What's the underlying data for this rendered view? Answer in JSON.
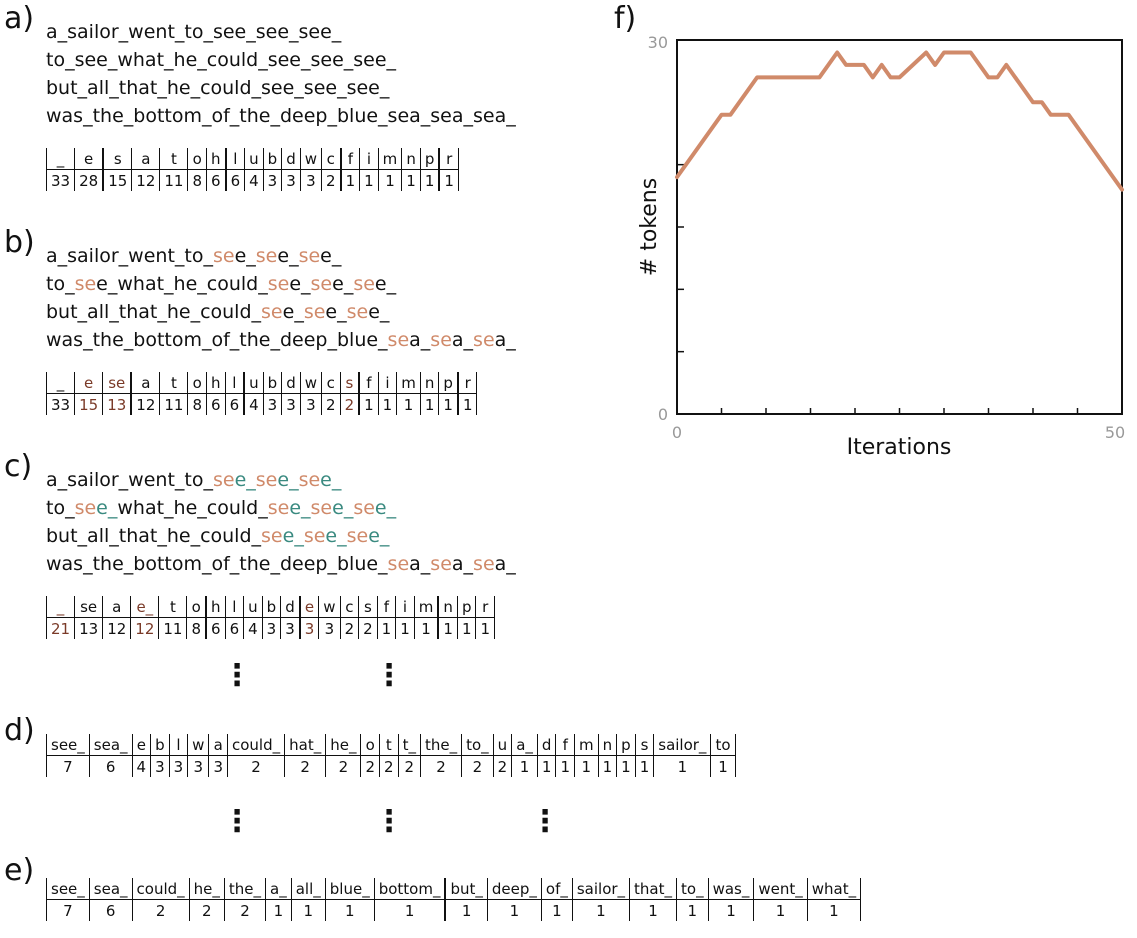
{
  "labels": {
    "a": "a)",
    "b": "b)",
    "c": "c)",
    "d": "d)",
    "e": "e)",
    "f": "f)"
  },
  "panel_a": {
    "sentences": [
      [
        {
          "t": "a_sailor_went_to_see_see_see_"
        }
      ],
      [
        {
          "t": "to_see_what_he_could_see_see_see_"
        }
      ],
      [
        {
          "t": "but_all_that_he_could_see_see_see_"
        }
      ],
      [
        {
          "t": "was_the_bottom_of_the_deep_blue_sea_sea_sea_"
        }
      ]
    ],
    "table": {
      "tokens": [
        "_",
        "e",
        "s",
        "a",
        "t",
        "o",
        "h",
        "l",
        "u",
        "b",
        "d",
        "w",
        "c",
        "f",
        "i",
        "m",
        "n",
        "p",
        "r"
      ],
      "counts": [
        "33",
        "28",
        "15",
        "12",
        "11",
        "8",
        "6",
        "6",
        "4",
        "3",
        "3",
        "3",
        "2",
        "1",
        "1",
        "1",
        "1",
        "1",
        "1"
      ],
      "highlight": {}
    }
  },
  "panel_b": {
    "sentences": [
      [
        {
          "t": "a_sailor_went_to_"
        },
        {
          "t": "se",
          "c": "c1"
        },
        {
          "t": "e_"
        },
        {
          "t": "se",
          "c": "c1"
        },
        {
          "t": "e_"
        },
        {
          "t": "se",
          "c": "c1"
        },
        {
          "t": "e_"
        }
      ],
      [
        {
          "t": "to_"
        },
        {
          "t": "se",
          "c": "c1"
        },
        {
          "t": "e_what_he_could_"
        },
        {
          "t": "se",
          "c": "c1"
        },
        {
          "t": "e_"
        },
        {
          "t": "se",
          "c": "c1"
        },
        {
          "t": "e_"
        },
        {
          "t": "se",
          "c": "c1"
        },
        {
          "t": "e_"
        }
      ],
      [
        {
          "t": "but_all_that_he_could_"
        },
        {
          "t": "se",
          "c": "c1"
        },
        {
          "t": "e_"
        },
        {
          "t": "se",
          "c": "c1"
        },
        {
          "t": "e_"
        },
        {
          "t": "se",
          "c": "c1"
        },
        {
          "t": "e_"
        }
      ],
      [
        {
          "t": "was_the_bottom_of_the_deep_blue_"
        },
        {
          "t": "se",
          "c": "c1"
        },
        {
          "t": "a_"
        },
        {
          "t": "se",
          "c": "c1"
        },
        {
          "t": "a_"
        },
        {
          "t": "se",
          "c": "c1"
        },
        {
          "t": "a_"
        }
      ]
    ],
    "table": {
      "tokens": [
        "_",
        "e",
        "se",
        "a",
        "t",
        "o",
        "h",
        "l",
        "u",
        "b",
        "d",
        "w",
        "c",
        "s",
        "f",
        "i",
        "m",
        "n",
        "p",
        "r"
      ],
      "counts": [
        "33",
        "15",
        "13",
        "12",
        "11",
        "8",
        "6",
        "6",
        "4",
        "3",
        "3",
        "3",
        "2",
        "2",
        "1",
        "1",
        "1",
        "1",
        "1",
        "1"
      ],
      "highlight": {
        "1": "c3",
        "2": "c3",
        "13": "c3"
      }
    }
  },
  "panel_c": {
    "sentences": [
      [
        {
          "t": "a_sailor_went_to_"
        },
        {
          "t": "se",
          "c": "c1"
        },
        {
          "t": "e_",
          "c": "c2"
        },
        {
          "t": "se",
          "c": "c1"
        },
        {
          "t": "e_",
          "c": "c2"
        },
        {
          "t": "se",
          "c": "c1"
        },
        {
          "t": "e_",
          "c": "c2"
        }
      ],
      [
        {
          "t": "to_"
        },
        {
          "t": "se",
          "c": "c1"
        },
        {
          "t": "e_",
          "c": "c2"
        },
        {
          "t": "what_he_could_"
        },
        {
          "t": "se",
          "c": "c1"
        },
        {
          "t": "e_",
          "c": "c2"
        },
        {
          "t": "se",
          "c": "c1"
        },
        {
          "t": "e_",
          "c": "c2"
        },
        {
          "t": "se",
          "c": "c1"
        },
        {
          "t": "e_",
          "c": "c2"
        }
      ],
      [
        {
          "t": "but_all_that_he_could_"
        },
        {
          "t": "se",
          "c": "c1"
        },
        {
          "t": "e_",
          "c": "c2"
        },
        {
          "t": "se",
          "c": "c1"
        },
        {
          "t": "e_",
          "c": "c2"
        },
        {
          "t": "se",
          "c": "c1"
        },
        {
          "t": "e_",
          "c": "c2"
        }
      ],
      [
        {
          "t": "was_the_bottom_of_the_deep_blue_"
        },
        {
          "t": "se",
          "c": "c1"
        },
        {
          "t": "a_"
        },
        {
          "t": "se",
          "c": "c1"
        },
        {
          "t": "a_"
        },
        {
          "t": "se",
          "c": "c1"
        },
        {
          "t": "a_"
        }
      ]
    ],
    "table": {
      "tokens": [
        "_",
        "se",
        "a",
        "e_",
        "t",
        "o",
        "h",
        "l",
        "u",
        "b",
        "d",
        "e",
        "w",
        "c",
        "s",
        "f",
        "i",
        "m",
        "n",
        "p",
        "r"
      ],
      "counts": [
        "21",
        "13",
        "12",
        "12",
        "11",
        "8",
        "6",
        "6",
        "4",
        "3",
        "3",
        "3",
        "3",
        "2",
        "2",
        "1",
        "1",
        "1",
        "1",
        "1",
        "1"
      ],
      "highlight": {
        "0": "c3",
        "3": "c3",
        "11": "c3"
      }
    }
  },
  "panel_d": {
    "table": {
      "tokens": [
        "see_",
        "sea_",
        "e",
        "b",
        "l",
        "w",
        "a",
        "could_",
        "hat_",
        "he_",
        "o",
        "t",
        "t_",
        "the_",
        "to_",
        "u",
        "a_",
        "d",
        "f",
        "m",
        "n",
        "p",
        "s",
        "sailor_",
        "to"
      ],
      "counts": [
        "7",
        "6",
        "4",
        "3",
        "3",
        "3",
        "3",
        "2",
        "2",
        "2",
        "2",
        "2",
        "2",
        "2",
        "2",
        "2",
        "1",
        "1",
        "1",
        "1",
        "1",
        "1",
        "1",
        "1",
        "1"
      ],
      "highlight": {}
    }
  },
  "panel_e": {
    "table": {
      "tokens": [
        "see_",
        "sea_",
        "could_",
        "he_",
        "the_",
        "a_",
        "all_",
        "blue_",
        "bottom_",
        "but_",
        "deep_",
        "of_",
        "sailor_",
        "that_",
        "to_",
        "was_",
        "went_",
        "what_"
      ],
      "counts": [
        "7",
        "6",
        "2",
        "2",
        "2",
        "1",
        "1",
        "1",
        "1",
        "1",
        "1",
        "1",
        "1",
        "1",
        "1",
        "1",
        "1",
        "1"
      ],
      "highlight": {}
    }
  },
  "dots": [
    "⋮",
    "⋮",
    "⋮",
    "⋮",
    "⋮"
  ],
  "chart_data": {
    "type": "line",
    "title": "",
    "xlabel": "Iterations",
    "ylabel": "# tokens",
    "xlim": [
      0,
      50
    ],
    "ylim": [
      0,
      30
    ],
    "xticklabels": [
      "0",
      "50"
    ],
    "yticklabels": [
      "0",
      "30"
    ],
    "grid": false,
    "color": "#d08a6a",
    "series": [
      {
        "x": [
          0,
          5,
          6,
          9,
          16,
          18,
          19,
          21,
          22,
          23,
          24,
          25,
          28,
          29,
          30,
          33,
          35,
          36,
          37,
          40,
          41,
          42,
          44,
          50
        ],
        "y": [
          19,
          24,
          24,
          27,
          27,
          29,
          28,
          28,
          27,
          28,
          27,
          27,
          29,
          28,
          29,
          29,
          27,
          27,
          28,
          25,
          25,
          24,
          24,
          18
        ]
      }
    ]
  }
}
